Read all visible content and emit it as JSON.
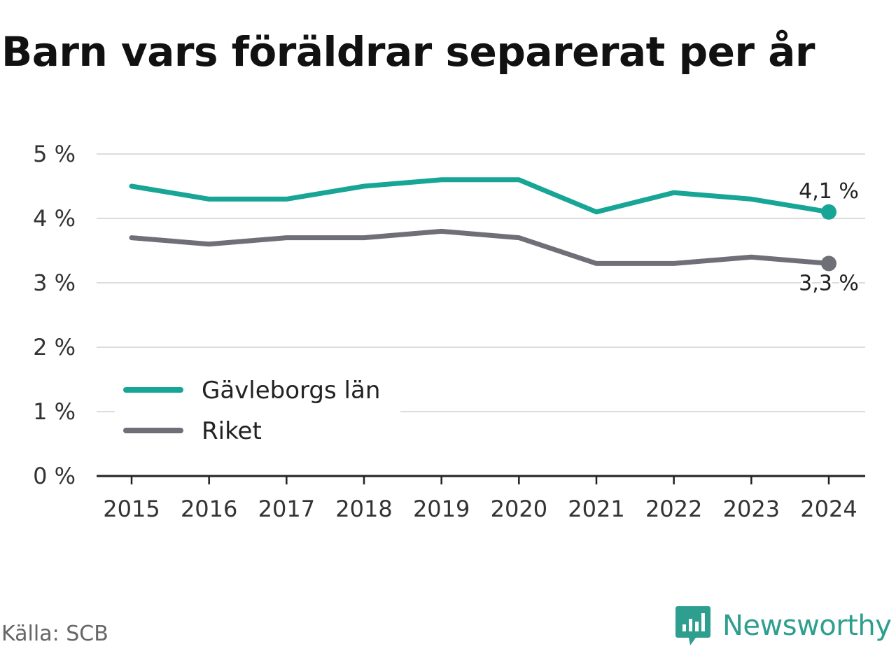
{
  "title": "Barn vars föräldrar separerat per år",
  "source": "Källa: SCB",
  "brand": {
    "name": "Newsworthy",
    "icon": "newsworthy-logo-icon",
    "color": "#2e9e8e"
  },
  "chart_data": {
    "type": "line",
    "title": "Barn vars föräldrar separerat per år",
    "xlabel": "",
    "ylabel": "",
    "x": [
      "2015",
      "2016",
      "2017",
      "2018",
      "2019",
      "2020",
      "2021",
      "2022",
      "2023",
      "2024"
    ],
    "ylim": [
      0,
      5
    ],
    "yticks": [
      0,
      1,
      2,
      3,
      4,
      5
    ],
    "ytick_labels": [
      "0 %",
      "1 %",
      "2 %",
      "3 %",
      "4 %",
      "5 %"
    ],
    "grid": true,
    "legend": "bottom-left",
    "series": [
      {
        "name": "Gävleborgs län",
        "color": "#17a596",
        "values": [
          4.5,
          4.3,
          4.3,
          4.5,
          4.6,
          4.6,
          4.1,
          4.4,
          4.3,
          4.1
        ],
        "end_label": "4,1 %"
      },
      {
        "name": "Riket",
        "color": "#6f6f78",
        "values": [
          3.7,
          3.6,
          3.7,
          3.7,
          3.8,
          3.7,
          3.3,
          3.3,
          3.4,
          3.3
        ],
        "end_label": "3,3 %"
      }
    ]
  }
}
